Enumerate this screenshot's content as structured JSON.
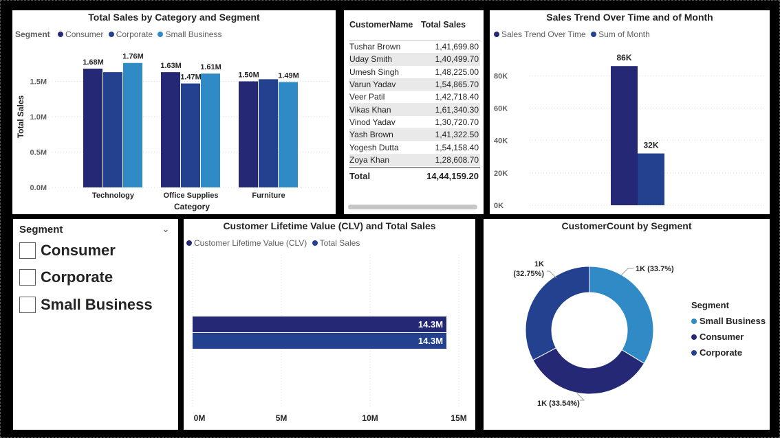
{
  "colors": {
    "consumer": "#252874",
    "corporate": "#23418f",
    "small_business": "#2f8ac6",
    "gridline": "#d6d6d6",
    "text": "#252423"
  },
  "category_chart": {
    "title": "Total Sales by Category and Segment",
    "legend_title": "Segment",
    "legend": [
      "Consumer",
      "Corporate",
      "Small Business"
    ],
    "ylabel": "Total Sales",
    "xlabel": "Category",
    "yticks": [
      "0.0M",
      "0.5M",
      "1.0M",
      "1.5M"
    ]
  },
  "customer_table": {
    "headers": [
      "CustomerName",
      "Total Sales"
    ],
    "rows": [
      [
        "Tushar Brown",
        "1,41,699.80"
      ],
      [
        "Uday Smith",
        "1,40,499.70"
      ],
      [
        "Umesh Singh",
        "1,48,225.00"
      ],
      [
        "Varun Yadav",
        "1,54,865.70"
      ],
      [
        "Veer Patil",
        "1,42,718.40"
      ],
      [
        "Vikas Khan",
        "1,61,340.30"
      ],
      [
        "Vinod Yadav",
        "1,30,720.70"
      ],
      [
        "Yash Brown",
        "1,41,322.50"
      ],
      [
        "Yogesh Dutta",
        "1,54,158.40"
      ],
      [
        "Zoya Khan",
        "1,28,608.70"
      ]
    ],
    "total_label": "Total",
    "total_value": "14,44,159.20"
  },
  "trend_chart": {
    "title": "Sales Trend Over Time and of Month",
    "legend": [
      "Sales Trend Over Time",
      "Sum of Month"
    ],
    "yticks": [
      "0K",
      "20K",
      "40K",
      "60K",
      "80K"
    ]
  },
  "slicer": {
    "title": "Segment",
    "items": [
      "Consumer",
      "Corporate",
      "Small Business"
    ]
  },
  "clv_chart": {
    "title": "Customer Lifetime Value (CLV) and Total Sales",
    "legend": [
      "Customer Lifetime Value (CLV)",
      "Total Sales"
    ],
    "xticks": [
      "0M",
      "5M",
      "10M",
      "15M"
    ]
  },
  "donut_chart": {
    "title": "CustomerCount by Segment",
    "legend_title": "Segment",
    "legend": [
      "Small Business",
      "Consumer",
      "Corporate"
    ]
  },
  "chart_data": [
    {
      "type": "bar",
      "title": "Total Sales by Category and Segment",
      "categories": [
        "Technology",
        "Office Supplies",
        "Furniture"
      ],
      "series": [
        {
          "name": "Consumer",
          "values": [
            1.68,
            1.63,
            1.5
          ],
          "labels": [
            "1.68M",
            "1.63M",
            "1.50M"
          ]
        },
        {
          "name": "Corporate",
          "values": [
            1.63,
            1.47,
            1.53
          ],
          "labels": [
            "",
            "1.47M",
            ""
          ]
        },
        {
          "name": "Small Business",
          "values": [
            1.76,
            1.61,
            1.49
          ],
          "labels": [
            "1.76M",
            "1.61M",
            "1.49M"
          ]
        }
      ],
      "xlabel": "Category",
      "ylabel": "Total Sales",
      "ylim": [
        0,
        2.0
      ],
      "yticks": [
        0,
        0.5,
        1.0,
        1.5
      ]
    },
    {
      "type": "bar",
      "title": "Sales Trend Over Time and of Month",
      "categories": [
        ""
      ],
      "series": [
        {
          "name": "Sales Trend Over Time",
          "values": [
            86000
          ],
          "label": "86K"
        },
        {
          "name": "Sum of Month",
          "values": [
            32000
          ],
          "label": "32K"
        }
      ],
      "ylim": [
        0,
        95000
      ],
      "yticks": [
        0,
        20000,
        40000,
        60000,
        80000
      ]
    },
    {
      "type": "bar",
      "title": "Customer Lifetime Value (CLV) and Total Sales",
      "orientation": "horizontal",
      "series": [
        {
          "name": "Customer Lifetime Value (CLV)",
          "value": 14.3,
          "label": "14.3M"
        },
        {
          "name": "Total Sales",
          "value": 14.3,
          "label": "14.3M"
        }
      ],
      "xlim": [
        0,
        15.5
      ],
      "xticks": [
        0,
        5,
        10,
        15
      ]
    },
    {
      "type": "pie",
      "title": "CustomerCount by Segment",
      "series": [
        {
          "name": "Small Business",
          "value": 33.7,
          "label": "1K (33.7%)"
        },
        {
          "name": "Consumer",
          "value": 33.54,
          "label": "1K (33.54%)"
        },
        {
          "name": "Corporate",
          "value": 32.75,
          "label": "1K (32.75%)"
        }
      ]
    }
  ]
}
